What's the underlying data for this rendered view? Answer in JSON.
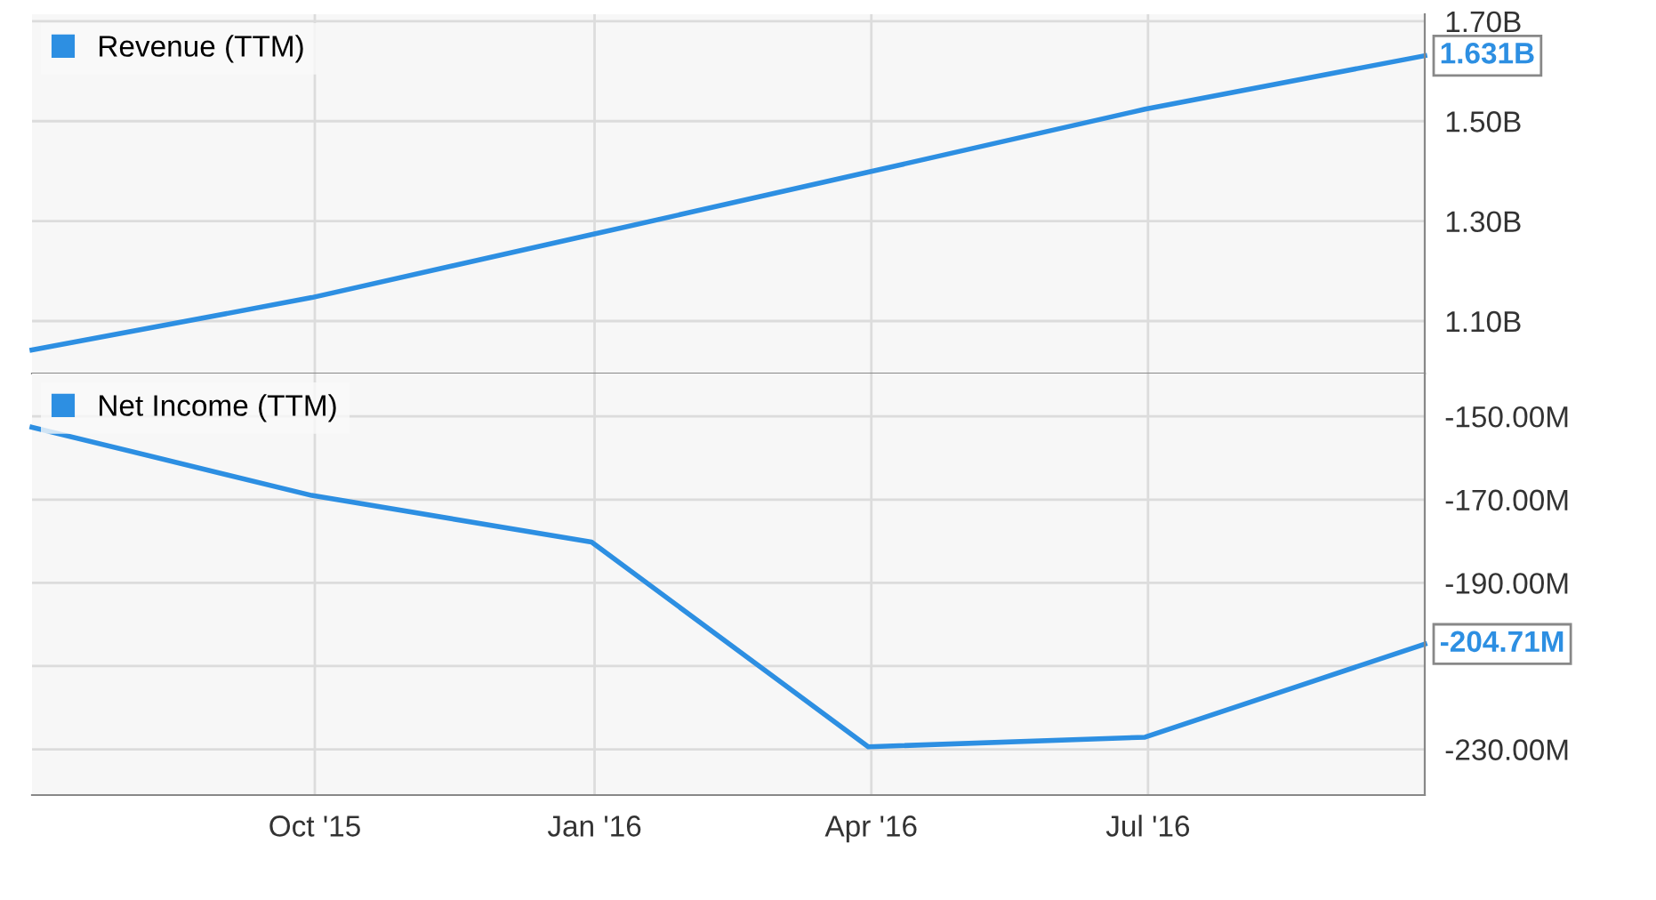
{
  "chart_data": [
    {
      "type": "line",
      "x": [
        "2015-06-30",
        "2015-09-30",
        "2015-12-31",
        "2016-03-31",
        "2016-06-30",
        "2016-09-30"
      ],
      "series": [
        {
          "name": "Revenue (TTM)",
          "color": "#2d8fe2",
          "values": [
            1.042,
            1.147,
            1.273,
            1.398,
            1.524,
            1.631
          ],
          "value_labels": [
            null,
            null,
            null,
            null,
            null,
            "1.631B"
          ]
        }
      ],
      "xlim": [
        "2015-06-30",
        "2016-09-30"
      ],
      "xticks": [
        {
          "value": "2015-10-01",
          "label": null
        },
        {
          "value": "2016-01-01",
          "label": null
        },
        {
          "value": "2016-04-01",
          "label": null
        },
        {
          "value": "2016-07-01",
          "label": null
        }
      ],
      "ylim": [
        0.995,
        1.714
      ],
      "yticks": [
        {
          "value": 1.1,
          "label": "1.10B"
        },
        {
          "value": 1.3,
          "label": "1.30B"
        },
        {
          "value": 1.5,
          "label": "1.50B"
        },
        {
          "value": 1.7,
          "label": "1.70B"
        }
      ],
      "grid": true,
      "legend": "top left",
      "tick_labels": "y"
    },
    {
      "type": "line",
      "x": [
        "2015-06-30",
        "2015-09-30",
        "2015-12-31",
        "2016-03-31",
        "2016-06-30",
        "2016-09-30"
      ],
      "series": [
        {
          "name": "Net Income (TTM)",
          "color": "#2d8fe2",
          "values": [
            -152.6,
            -169.0,
            -180.2,
            -229.4,
            -227.1,
            -204.71
          ],
          "value_labels": [
            null,
            null,
            null,
            null,
            null,
            "-204.71M"
          ]
        }
      ],
      "xlim": [
        "2015-06-30",
        "2016-09-30"
      ],
      "xticks": [
        {
          "value": "2015-10-01",
          "label": "Oct '15"
        },
        {
          "value": "2016-01-01",
          "label": "Jan '16"
        },
        {
          "value": "2016-04-01",
          "label": "Apr '16"
        },
        {
          "value": "2016-07-01",
          "label": "Jul '16"
        }
      ],
      "ylim": [
        -241,
        -139.7
      ],
      "yticks": [
        {
          "value": -230,
          "label": "-230.00M"
        },
        {
          "value": -210,
          "label": null
        },
        {
          "value": -190,
          "label": "-190.00M"
        },
        {
          "value": -170,
          "label": "-170.00M"
        },
        {
          "value": -150,
          "label": "-150.00M"
        }
      ],
      "grid": true,
      "legend": "top left"
    }
  ]
}
